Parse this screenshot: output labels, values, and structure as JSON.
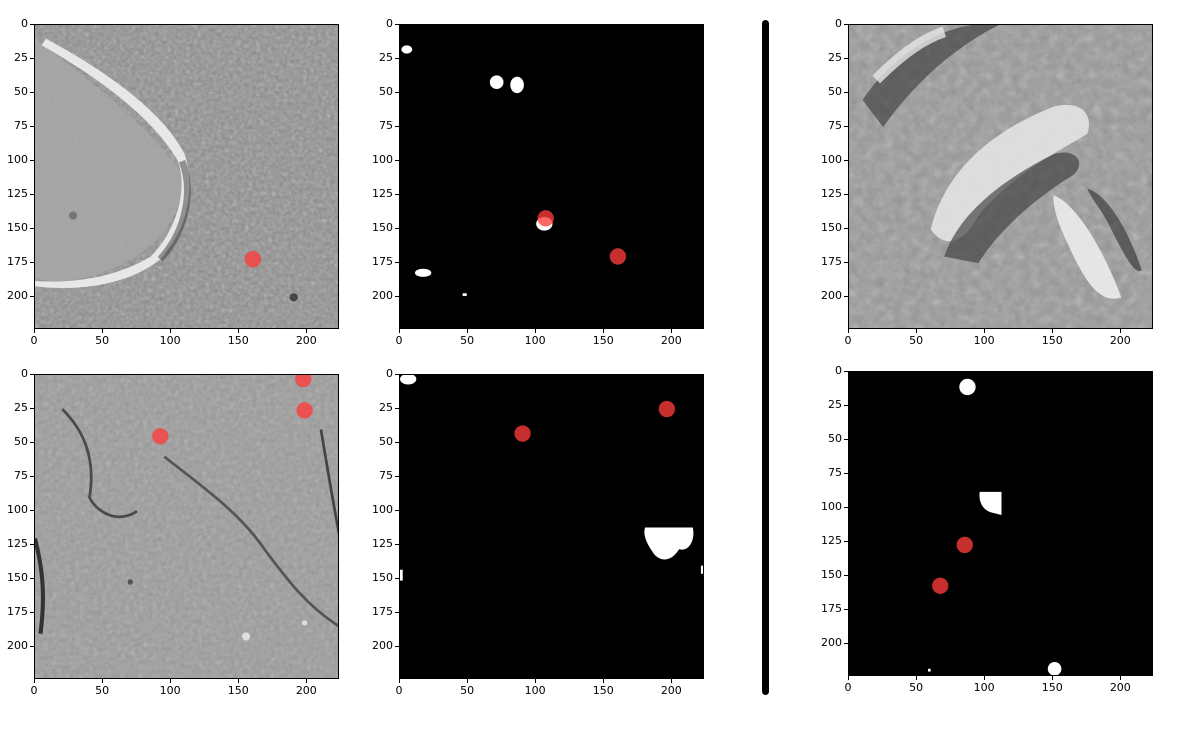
{
  "axes": {
    "x_ticks": [
      "0",
      "50",
      "100",
      "150",
      "200"
    ],
    "y_ticks": [
      "0",
      "25",
      "50",
      "75",
      "100",
      "125",
      "150",
      "175",
      "200"
    ],
    "range": [
      0,
      224
    ]
  },
  "colors": {
    "crater_marker": "#ff3b3b",
    "mask_background": "#000000",
    "mask_foreground": "#ffffff",
    "divider": "#000000"
  },
  "panels": [
    {
      "id": "r1c1",
      "kind": "terrain",
      "style": "crater-rim",
      "markers": [
        [
          160,
          172
        ]
      ]
    },
    {
      "id": "r1c2",
      "kind": "mask",
      "markers": [
        [
          107,
          142
        ],
        [
          160,
          170
        ]
      ]
    },
    {
      "id": "r2c1",
      "kind": "terrain",
      "style": "channels",
      "markers": [
        [
          92,
          45
        ],
        [
          198,
          26
        ],
        [
          197,
          3
        ]
      ]
    },
    {
      "id": "r2c2",
      "kind": "mask",
      "markers": [
        [
          90,
          43
        ],
        [
          196,
          25
        ]
      ]
    },
    {
      "id": "r1c3",
      "kind": "terrain",
      "style": "ridges",
      "markers": []
    },
    {
      "id": "r2c3",
      "kind": "mask",
      "markers": [
        [
          85,
          127
        ],
        [
          67,
          157
        ]
      ]
    }
  ]
}
